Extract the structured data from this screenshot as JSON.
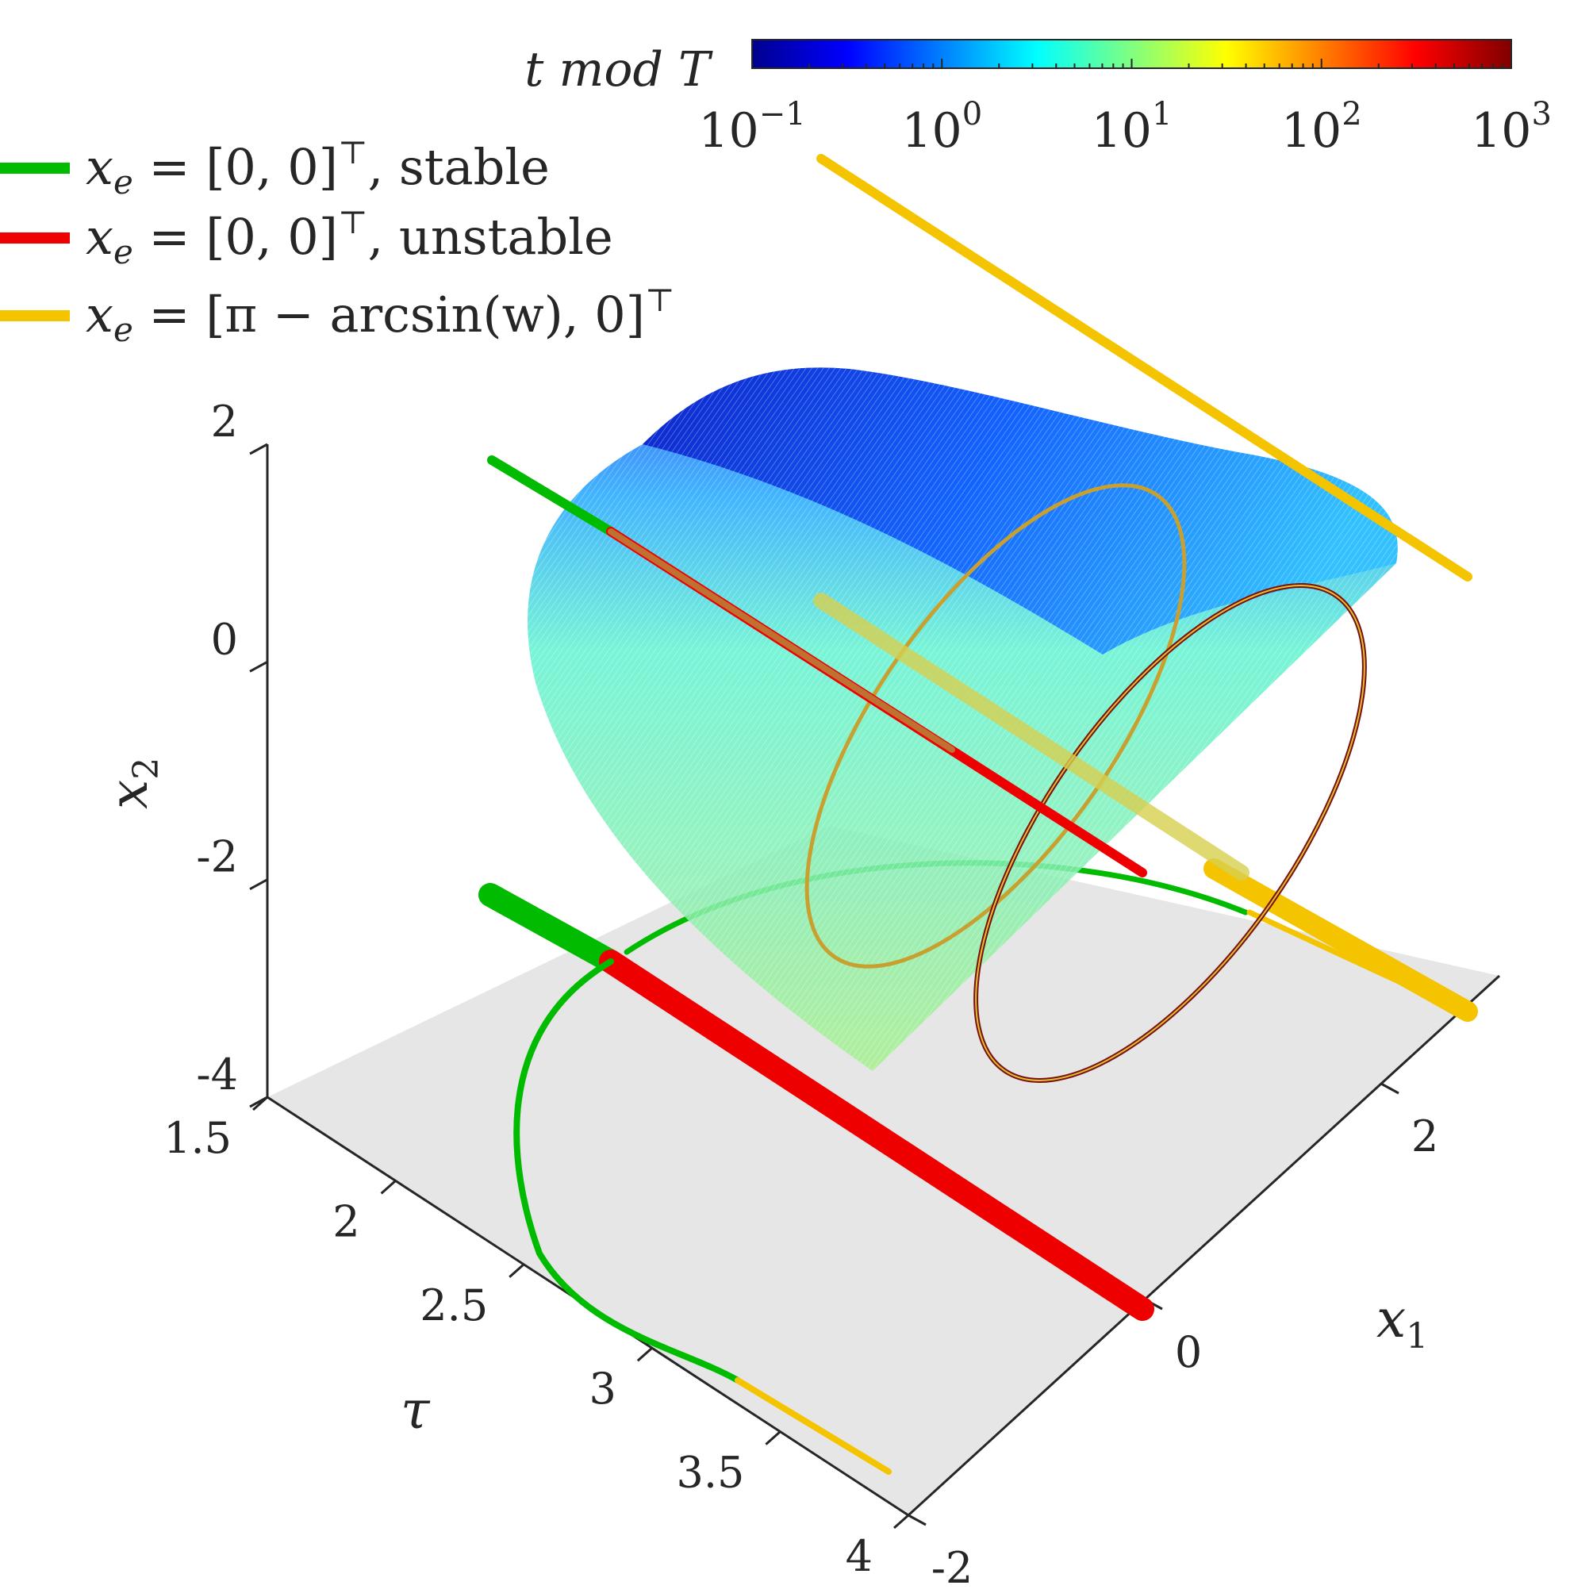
{
  "chart_data": {
    "type": "3d-surface",
    "colorbar": {
      "label": "t mod T",
      "scale": "log",
      "ticks": [
        {
          "base": "10",
          "exp": "−1",
          "value": 0.1
        },
        {
          "base": "10",
          "exp": "0",
          "value": 1
        },
        {
          "base": "10",
          "exp": "1",
          "value": 10
        },
        {
          "base": "10",
          "exp": "2",
          "value": 100
        },
        {
          "base": "10",
          "exp": "3",
          "value": 1000
        }
      ],
      "range": [
        0.1,
        1000
      ],
      "colormap": "jet"
    },
    "legend": {
      "placement": "top-left",
      "entries": [
        {
          "math": "x",
          "sub": "e",
          "rest": " = [0, 0]",
          "sup": "⊤",
          "tail": ", stable",
          "color": "#00bb00"
        },
        {
          "math": "x",
          "sub": "e",
          "rest": " = [0, 0]",
          "sup": "⊤",
          "tail": ", unstable",
          "color": "#ee0000"
        },
        {
          "math": "x",
          "sub": "e",
          "rest": " = [π − arcsin(w), 0]",
          "sup": "⊤",
          "tail": "",
          "color": "#f5c400"
        }
      ]
    },
    "axes": {
      "x2": {
        "label": "x",
        "sub": "2",
        "ticks": [
          "2",
          "0",
          "-2",
          "-4"
        ],
        "values": [
          2,
          0,
          -2,
          -4
        ],
        "range": [
          -4,
          2
        ]
      },
      "tau": {
        "label": "τ",
        "ticks": [
          "1.5",
          "2",
          "2.5",
          "3",
          "3.5",
          "4"
        ],
        "values": [
          1.5,
          2,
          2.5,
          3,
          3.5,
          4
        ],
        "range": [
          1.5,
          4
        ]
      },
      "x1": {
        "label": "x",
        "sub": "1",
        "ticks": [
          "-2",
          "0",
          "2"
        ],
        "values": [
          -2,
          0,
          2
        ],
        "range": [
          -2,
          3
        ]
      }
    },
    "series": [
      {
        "name": "x_e = [0,0]ᵀ, stable",
        "color": "#00bb00",
        "points": [
          [
            0,
            1.5,
            0
          ],
          [
            0,
            2.1,
            0
          ]
        ]
      },
      {
        "name": "x_e = [0,0]ᵀ, unstable",
        "color": "#ee0000",
        "points": [
          [
            0,
            2.1,
            0
          ],
          [
            0,
            3.6,
            0
          ]
        ]
      },
      {
        "name": "x_e = [π − arcsin(w), 0]ᵀ",
        "color": "#f5c400",
        "points": [
          [
            2.3,
            1.5,
            0
          ],
          [
            2.9,
            3.6,
            0
          ]
        ]
      },
      {
        "name": "periodic orbit surface",
        "color_by": "t mod T",
        "tau_range": [
          2.2,
          3.5
        ]
      }
    ],
    "floor_color": "#e6e6e6"
  }
}
